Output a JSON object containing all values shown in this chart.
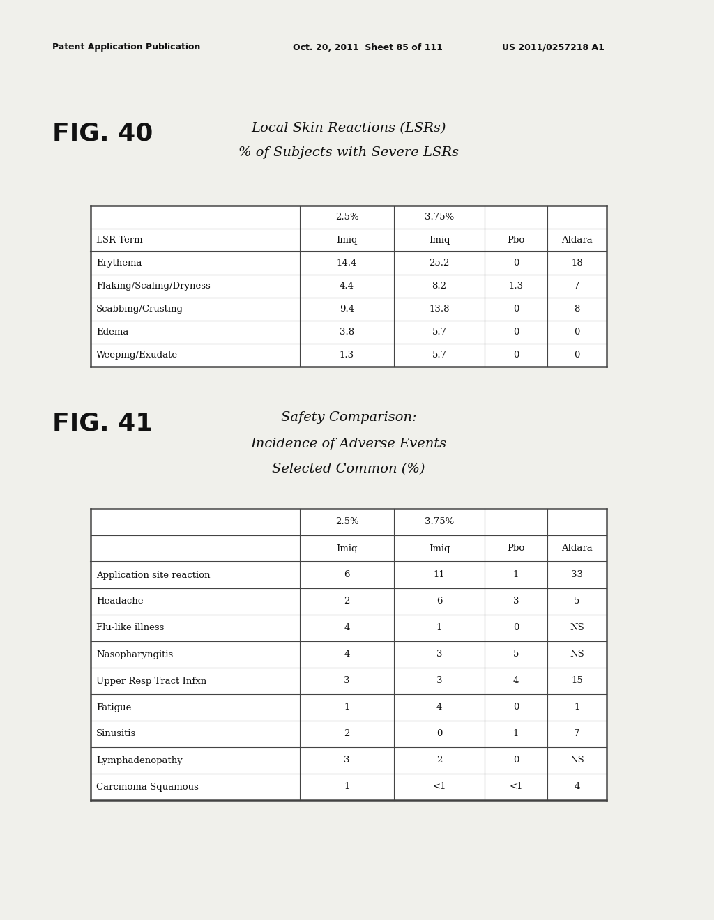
{
  "page_header_left": "Patent Application Publication",
  "page_header_mid": "Oct. 20, 2011  Sheet 85 of 111",
  "page_header_right": "US 2011/0257218 A1",
  "fig40_label": "FIG. 40",
  "fig40_title_line1": "Local Skin Reactions (LSRs)",
  "fig40_title_line2": "% of Subjects with Severe LSRs",
  "fig40_col_headers_row1": [
    "",
    "2.5%",
    "3.75%",
    "",
    ""
  ],
  "fig40_col_headers_row2": [
    "LSR Term",
    "Imiq",
    "Imiq",
    "Pbo",
    "Aldara"
  ],
  "fig40_rows": [
    [
      "Erythema",
      "14.4",
      "25.2",
      "0",
      "18"
    ],
    [
      "Flaking/Scaling/Dryness",
      "4.4",
      "8.2",
      "1.3",
      "7"
    ],
    [
      "Scabbing/Crusting",
      "9.4",
      "13.8",
      "0",
      "8"
    ],
    [
      "Edema",
      "3.8",
      "5.7",
      "0",
      "0"
    ],
    [
      "Weeping/Exudate",
      "1.3",
      "5.7",
      "0",
      "0"
    ]
  ],
  "fig41_label": "FIG. 41",
  "fig41_title_line1": "Safety Comparison:",
  "fig41_title_line2": "Incidence of Adverse Events",
  "fig41_title_line3": "Selected Common (%)",
  "fig41_col_headers_row1": [
    "",
    "2.5%",
    "3.75%",
    "",
    ""
  ],
  "fig41_col_headers_row2": [
    "",
    "Imiq",
    "Imiq",
    "Pbo",
    "Aldara"
  ],
  "fig41_rows": [
    [
      "Application site reaction",
      "6",
      "11",
      "1",
      "33"
    ],
    [
      "Headache",
      "2",
      "6",
      "3",
      "5"
    ],
    [
      "Flu-like illness",
      "4",
      "1",
      "0",
      "NS"
    ],
    [
      "Nasopharyngitis",
      "4",
      "3",
      "5",
      "NS"
    ],
    [
      "Upper Resp Tract Infxn",
      "3",
      "3",
      "4",
      "15"
    ],
    [
      "Fatigue",
      "1",
      "4",
      "0",
      "1"
    ],
    [
      "Sinusitis",
      "2",
      "0",
      "1",
      "7"
    ],
    [
      "Lymphadenopathy",
      "3",
      "2",
      "0",
      "NS"
    ],
    [
      "Carcinoma Squamous",
      "1",
      "<1",
      "<1",
      "4"
    ]
  ],
  "background_color": "#f0f0eb",
  "table_border_color": "#444444",
  "text_color": "#111111",
  "header_color": "#000000"
}
